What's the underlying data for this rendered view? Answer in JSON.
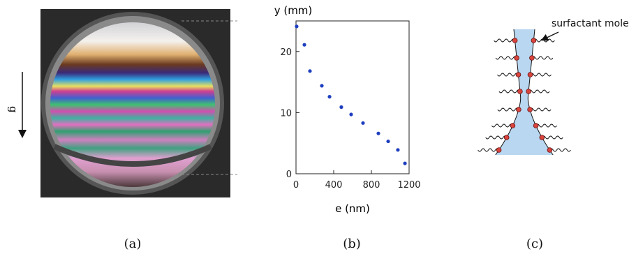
{
  "chart_data": {
    "type": "scatter",
    "xlabel": "e (nm)",
    "ylabel": "y (mm)",
    "x": [
      7,
      89,
      148,
      274,
      356,
      481,
      585,
      711,
      874,
      978,
      1081,
      1156
    ],
    "values": [
      24.1,
      21.1,
      16.8,
      14.4,
      12.6,
      10.9,
      9.7,
      8.3,
      6.6,
      5.3,
      3.9,
      1.7
    ],
    "color": "#1f3fbf",
    "xlim": [
      0,
      1200
    ],
    "xticks": [
      0,
      400,
      800,
      1200
    ],
    "ylim": [
      0,
      25
    ],
    "yticks": [
      0,
      10,
      20
    ]
  },
  "gravity_label": "g",
  "annotation": "surfactant molecule",
  "panel_labels": [
    "(a)",
    "(b)",
    "(c)"
  ]
}
